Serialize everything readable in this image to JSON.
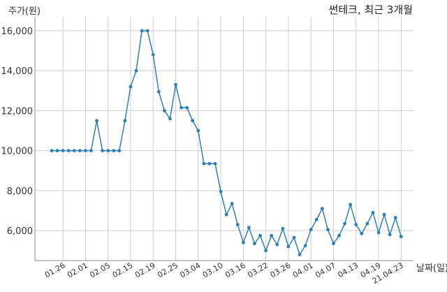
{
  "chart_data": {
    "type": "line",
    "title": "썬테크, 최근 3개월",
    "ylabel": "주가(원)",
    "xlabel": "날짜(일)",
    "ylim": [
      4500,
      16700
    ],
    "yticks": [
      6000,
      8000,
      10000,
      12000,
      14000,
      16000
    ],
    "ytick_labels": [
      "6,000",
      "8,000",
      "10,000",
      "12,000",
      "14,000",
      "16,000"
    ],
    "xticks": [
      {
        "label": "01.26",
        "index": 2
      },
      {
        "label": "02.01",
        "index": 6
      },
      {
        "label": "02.05",
        "index": 10
      },
      {
        "label": "02.15",
        "index": 14
      },
      {
        "label": "02.19",
        "index": 18
      },
      {
        "label": "02.25",
        "index": 22
      },
      {
        "label": "03.04",
        "index": 26
      },
      {
        "label": "03.10",
        "index": 30
      },
      {
        "label": "03.16",
        "index": 34
      },
      {
        "label": "03.22",
        "index": 38
      },
      {
        "label": "03.26",
        "index": 42
      },
      {
        "label": "04.01",
        "index": 46
      },
      {
        "label": "04.07",
        "index": 50
      },
      {
        "label": "04.13",
        "index": 54
      },
      {
        "label": "04.19",
        "index": 58
      },
      {
        "label": "21.04.23",
        "index": 62
      }
    ],
    "grid": true,
    "color": "#2f7fb5",
    "series": [
      {
        "values": [
          10000,
          10000,
          10000,
          10000,
          10000,
          10000,
          10000,
          10000,
          11500,
          10000,
          10000,
          10000,
          10000,
          11500,
          13200,
          14000,
          16000,
          16000,
          14800,
          12950,
          12000,
          11600,
          13300,
          12150,
          12150,
          11500,
          11000,
          9350,
          9350,
          9350,
          7950,
          6800,
          7350,
          6300,
          5400,
          6150,
          5350,
          5750,
          5000,
          5750,
          5300,
          6100,
          5200,
          5650,
          4800,
          5250,
          6050,
          6550,
          7100,
          6050,
          5350,
          5750,
          6350,
          7300,
          6300,
          5850,
          6350,
          6900,
          5900,
          6800,
          5800,
          6650,
          5700
        ]
      }
    ]
  }
}
